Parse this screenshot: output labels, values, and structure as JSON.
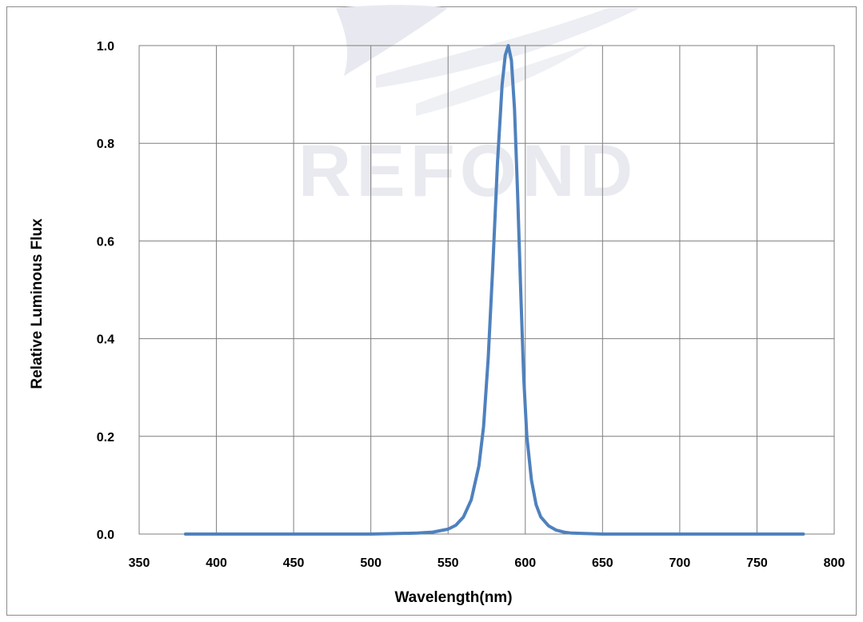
{
  "watermark": {
    "text": "REFOND"
  },
  "chart_data": {
    "type": "line",
    "xlabel": "Wavelength(nm)",
    "ylabel": "Relative Luminous Flux",
    "xlim": [
      350,
      800
    ],
    "ylim": [
      0.0,
      1.0
    ],
    "xticks": [
      "350",
      "400",
      "450",
      "500",
      "550",
      "600",
      "650",
      "700",
      "750",
      "800"
    ],
    "yticks": [
      "0.0",
      "0.2",
      "0.4",
      "0.6",
      "0.8",
      "1.0"
    ],
    "grid": true,
    "legend": "none",
    "line_color": "#4F81BD",
    "series": [
      {
        "x": [
          380,
          400,
          450,
          500,
          530,
          540,
          550,
          555,
          560,
          565,
          570,
          573,
          576,
          579,
          582,
          585,
          587,
          589,
          591,
          593,
          595,
          597,
          599,
          601,
          604,
          607,
          610,
          615,
          620,
          625,
          630,
          640,
          650,
          700,
          750,
          780
        ],
        "y": [
          0.0,
          0.0,
          0.0,
          0.0,
          0.002,
          0.004,
          0.01,
          0.018,
          0.035,
          0.07,
          0.14,
          0.22,
          0.36,
          0.55,
          0.76,
          0.92,
          0.98,
          1.0,
          0.97,
          0.87,
          0.7,
          0.5,
          0.32,
          0.2,
          0.11,
          0.06,
          0.035,
          0.017,
          0.008,
          0.004,
          0.002,
          0.001,
          0.0,
          0.0,
          0.0,
          0.0
        ]
      }
    ]
  }
}
